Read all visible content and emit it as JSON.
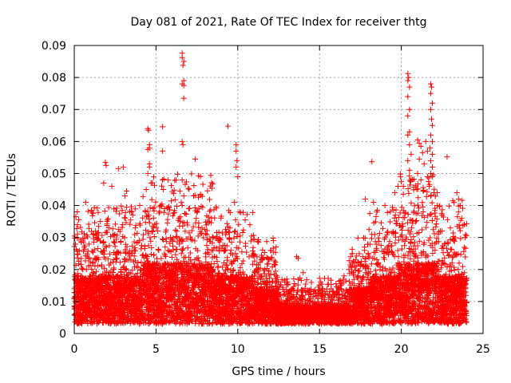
{
  "chart_data": {
    "type": "scatter",
    "title": "Day 081 of 2021, Rate Of TEC Index for receiver thtg",
    "xlabel": "GPS time / hours",
    "ylabel": "ROTI / TECUs",
    "xlim": [
      0,
      25
    ],
    "ylim": [
      0,
      0.09
    ],
    "xticks": [
      0,
      5,
      10,
      15,
      20,
      25
    ],
    "yticks": [
      0,
      0.01,
      0.02,
      0.03,
      0.04,
      0.05,
      0.06,
      0.07,
      0.08,
      0.09
    ],
    "grid": true,
    "marker": "+",
    "marker_color": "#ff0000",
    "series": [
      {
        "name": "ROTI",
        "points": [
          [
            6.6,
            0.0876
          ],
          [
            6.6,
            0.0862
          ],
          [
            6.7,
            0.085
          ],
          [
            6.65,
            0.0838
          ],
          [
            6.7,
            0.079
          ],
          [
            6.6,
            0.078
          ],
          [
            6.7,
            0.0775
          ],
          [
            6.7,
            0.0735
          ],
          [
            6.6,
            0.06
          ],
          [
            6.65,
            0.059
          ],
          [
            6.6,
            0.048
          ],
          [
            6.7,
            0.043
          ],
          [
            6.6,
            0.04
          ],
          [
            4.5,
            0.064
          ],
          [
            4.55,
            0.0635
          ],
          [
            5.4,
            0.0646
          ],
          [
            4.6,
            0.059
          ],
          [
            4.6,
            0.058
          ],
          [
            4.5,
            0.0575
          ],
          [
            5.4,
            0.057
          ],
          [
            4.6,
            0.053
          ],
          [
            4.6,
            0.052
          ],
          [
            4.5,
            0.05
          ],
          [
            5.4,
            0.048
          ],
          [
            5.45,
            0.045
          ],
          [
            4.4,
            0.045
          ],
          [
            4.7,
            0.047
          ],
          [
            7.4,
            0.0545
          ],
          [
            7.3,
            0.043
          ],
          [
            7.0,
            0.039
          ],
          [
            9.4,
            0.0648
          ],
          [
            9.9,
            0.059
          ],
          [
            9.9,
            0.057
          ],
          [
            9.95,
            0.054
          ],
          [
            9.9,
            0.052
          ],
          [
            10.0,
            0.049
          ],
          [
            9.8,
            0.041
          ],
          [
            10.1,
            0.038
          ],
          [
            1.9,
            0.0535
          ],
          [
            1.95,
            0.0525
          ],
          [
            2.7,
            0.0515
          ],
          [
            3.0,
            0.052
          ],
          [
            1.8,
            0.047
          ],
          [
            2.3,
            0.046
          ],
          [
            3.2,
            0.0445
          ],
          [
            3.1,
            0.043
          ],
          [
            0.7,
            0.041
          ],
          [
            0.1,
            0.0365
          ],
          [
            0.2,
            0.034
          ],
          [
            1.3,
            0.032
          ],
          [
            2.0,
            0.035
          ],
          [
            3.5,
            0.038
          ],
          [
            4.0,
            0.04
          ],
          [
            18.2,
            0.0537
          ],
          [
            17.8,
            0.042
          ],
          [
            18.3,
            0.041
          ],
          [
            18.5,
            0.038
          ],
          [
            19.0,
            0.04
          ],
          [
            19.6,
            0.044
          ],
          [
            19.8,
            0.046
          ],
          [
            20.4,
            0.0812
          ],
          [
            20.45,
            0.08
          ],
          [
            20.4,
            0.079
          ],
          [
            20.5,
            0.077
          ],
          [
            20.4,
            0.074
          ],
          [
            20.5,
            0.07
          ],
          [
            20.4,
            0.068
          ],
          [
            20.5,
            0.063
          ],
          [
            20.4,
            0.062
          ],
          [
            20.5,
            0.059
          ],
          [
            20.6,
            0.056
          ],
          [
            20.4,
            0.054
          ],
          [
            20.5,
            0.051
          ],
          [
            20.6,
            0.048
          ],
          [
            21.8,
            0.078
          ],
          [
            21.85,
            0.077
          ],
          [
            21.8,
            0.075
          ],
          [
            21.9,
            0.072
          ],
          [
            21.8,
            0.07
          ],
          [
            21.85,
            0.067
          ],
          [
            21.9,
            0.065
          ],
          [
            21.8,
            0.062
          ],
          [
            21.9,
            0.06
          ],
          [
            21.75,
            0.058
          ],
          [
            21.9,
            0.056
          ],
          [
            21.8,
            0.054
          ],
          [
            21.9,
            0.052
          ],
          [
            21.8,
            0.05
          ],
          [
            21.0,
            0.0605
          ],
          [
            21.1,
            0.0595
          ],
          [
            21.2,
            0.0585
          ],
          [
            21.3,
            0.0565
          ],
          [
            21.1,
            0.0545
          ],
          [
            21.0,
            0.05
          ],
          [
            21.2,
            0.048
          ],
          [
            21.5,
            0.06
          ],
          [
            21.6,
            0.057
          ],
          [
            21.4,
            0.053
          ],
          [
            21.6,
            0.049
          ],
          [
            21.7,
            0.046
          ],
          [
            22.8,
            0.0552
          ],
          [
            23.4,
            0.044
          ],
          [
            23.5,
            0.042
          ],
          [
            23.6,
            0.04
          ],
          [
            23.5,
            0.038
          ],
          [
            23.7,
            0.036
          ],
          [
            23.9,
            0.03
          ],
          [
            22.0,
            0.044
          ],
          [
            22.2,
            0.04
          ],
          [
            22.5,
            0.037
          ],
          [
            23.0,
            0.033
          ],
          [
            23.2,
            0.029
          ],
          [
            12.0,
            0.026
          ],
          [
            11.5,
            0.023
          ],
          [
            12.3,
            0.0215
          ],
          [
            13.6,
            0.024
          ],
          [
            13.7,
            0.0235
          ],
          [
            14.0,
            0.019
          ],
          [
            13.0,
            0.017
          ],
          [
            14.5,
            0.016
          ],
          [
            15.2,
            0.014
          ],
          [
            15.8,
            0.013
          ],
          [
            16.3,
            0.015
          ],
          [
            16.8,
            0.02
          ],
          [
            16.9,
            0.024
          ],
          [
            17.0,
            0.025
          ],
          [
            17.5,
            0.021
          ],
          [
            16.5,
            0.018
          ]
        ]
      }
    ]
  }
}
